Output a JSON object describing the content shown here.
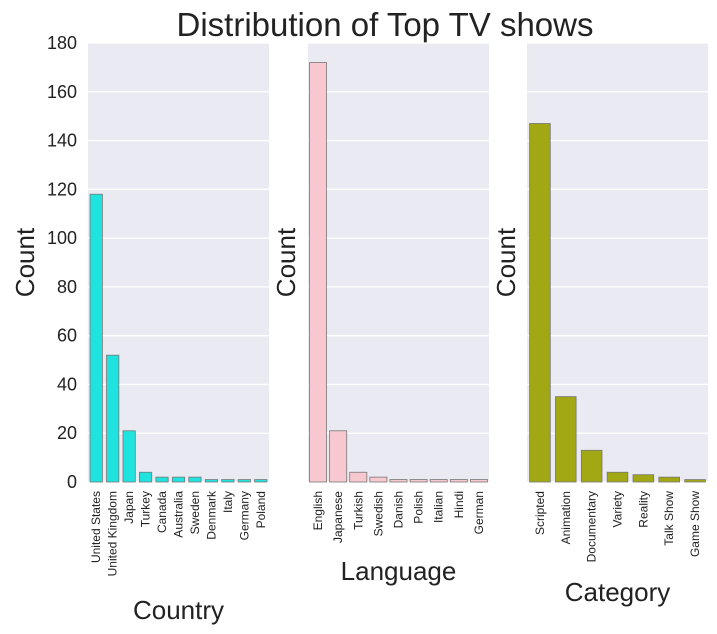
{
  "figure_title": "Distribution of Top TV shows",
  "colors": {
    "plot_background": "#eaeaf2",
    "grid": "#ffffff",
    "country_bars": "#1ee3de",
    "language_bars": "#f8c8d0",
    "category_bars": "#a2a714",
    "bar_edge": "#777777"
  },
  "chart_data": [
    {
      "type": "bar",
      "xlabel": "Country",
      "ylabel": "Count",
      "ylim": [
        0,
        180
      ],
      "yticks": [
        0,
        20,
        40,
        60,
        80,
        100,
        120,
        140,
        160,
        180
      ],
      "show_yticklabels": true,
      "grid": true,
      "categories": [
        "United States",
        "United Kingdom",
        "Japan",
        "Turkey",
        "Canada",
        "Australia",
        "Sweden",
        "Denmark",
        "Italy",
        "Germany",
        "Poland"
      ],
      "values": [
        118,
        52,
        21,
        4,
        2,
        2,
        2,
        1,
        1,
        1,
        1
      ]
    },
    {
      "type": "bar",
      "xlabel": "Language",
      "ylabel": "Count",
      "ylim": [
        0,
        180
      ],
      "yticks": [
        0,
        20,
        40,
        60,
        80,
        100,
        120,
        140,
        160,
        180
      ],
      "show_yticklabels": false,
      "grid": true,
      "categories": [
        "English",
        "Japanese",
        "Turkish",
        "Swedish",
        "Danish",
        "Polish",
        "Italian",
        "Hindi",
        "German"
      ],
      "values": [
        172,
        21,
        4,
        2,
        1,
        1,
        1,
        1,
        1
      ]
    },
    {
      "type": "bar",
      "xlabel": "Category",
      "ylabel": "Count",
      "ylim": [
        0,
        180
      ],
      "yticks": [
        0,
        20,
        40,
        60,
        80,
        100,
        120,
        140,
        160,
        180
      ],
      "show_yticklabels": false,
      "grid": true,
      "categories": [
        "Scripted",
        "Animation",
        "Documentary",
        "Variety",
        "Reality",
        "Talk Show",
        "Game Show"
      ],
      "values": [
        147,
        35,
        13,
        4,
        3,
        2,
        1
      ]
    }
  ]
}
